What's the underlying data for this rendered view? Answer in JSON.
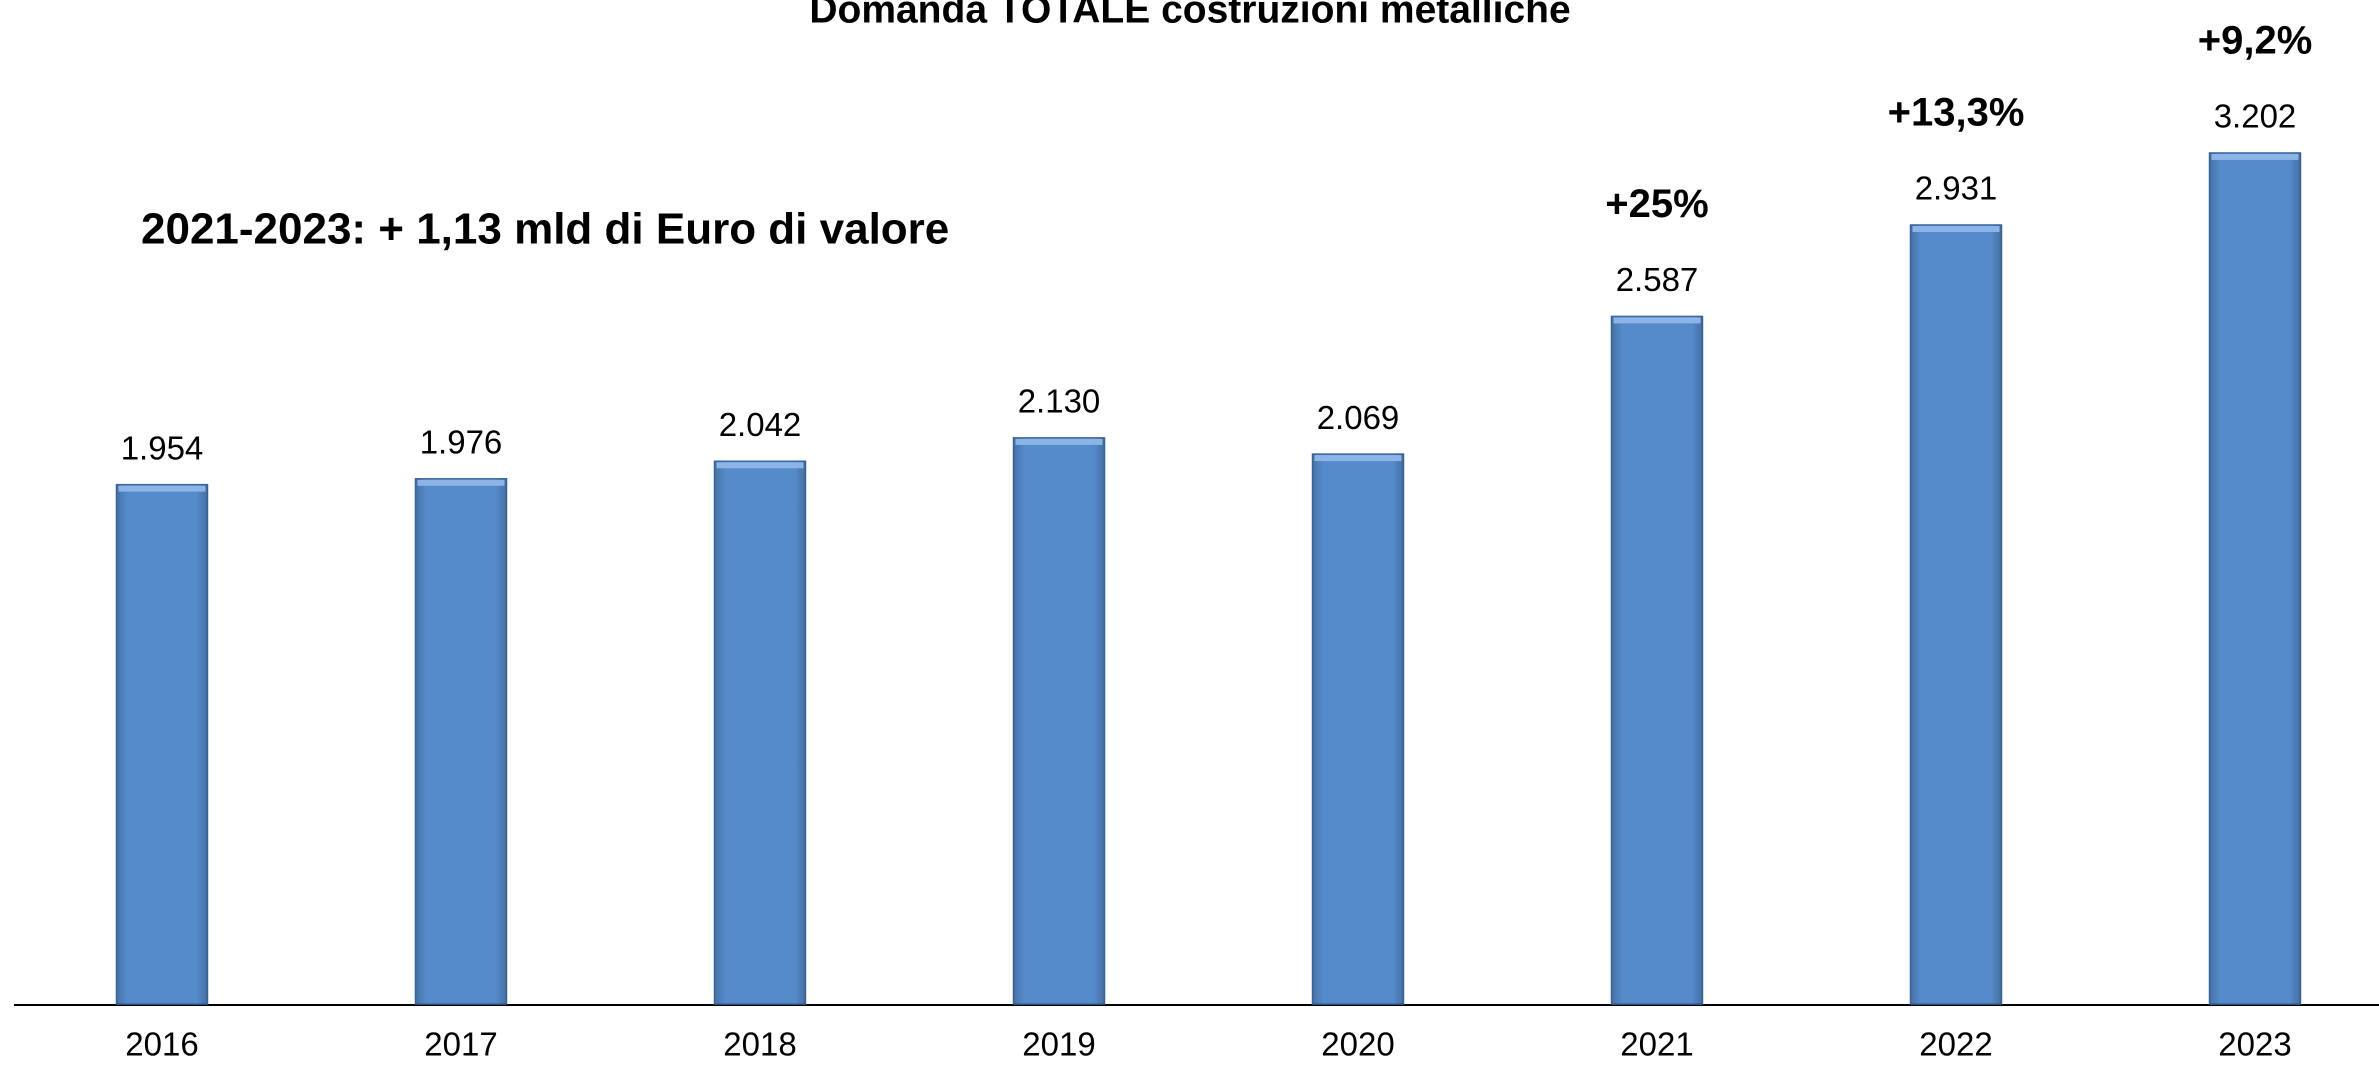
{
  "chart_data": {
    "type": "bar",
    "title": "Domanda TOTALE costruzioni metalliche",
    "subtitle": "2021-2023: + 1,13 mld di Euro di valore",
    "categories": [
      "2016",
      "2017",
      "2018",
      "2019",
      "2020",
      "2021",
      "2022",
      "2023"
    ],
    "values": [
      1954,
      1976,
      2042,
      2130,
      2069,
      2587,
      2931,
      3202
    ],
    "value_labels": [
      "1.954",
      "1.976",
      "2.042",
      "2.130",
      "2.069",
      "2.587",
      "2.931",
      "3.202"
    ],
    "growth_labels": [
      null,
      null,
      null,
      null,
      null,
      "+25%",
      "+13,3%",
      "+9,2%"
    ],
    "color": "#558bcb",
    "ylim": [
      0,
      3800
    ]
  }
}
